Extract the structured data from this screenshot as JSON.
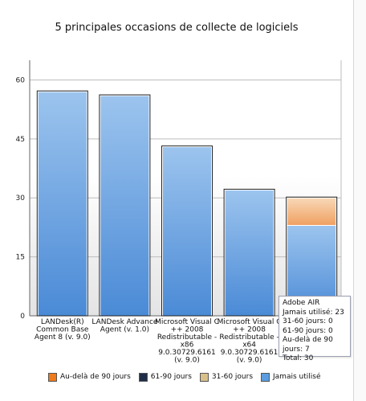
{
  "chart_data": {
    "type": "bar",
    "title": "5 principales occasions de collecte de logiciels",
    "xlabel": "",
    "ylabel": "",
    "ylim": [
      0,
      65
    ],
    "yticks": [
      0,
      15,
      30,
      45,
      60
    ],
    "grid": true,
    "legend_position": "bottom",
    "stacked": true,
    "categories": [
      [
        "LANDesk(R)",
        "Common Base",
        "Agent 8 (v. 9.0)"
      ],
      [
        "LANDesk Advance",
        "Agent (v. 1.0)"
      ],
      [
        "Microsoft Visual C",
        "++ 2008",
        "Redistributable -",
        "x86",
        "9.0.30729.6161",
        "(v. 9.0)"
      ],
      [
        "Microsoft Visual C",
        "++ 2008",
        "Redistributable -",
        "x64",
        "9.0.30729.6161",
        "(v. 9.0)"
      ],
      [
        "Adobe AIR"
      ]
    ],
    "series": [
      {
        "name": "Jamais utilisé",
        "color": "#5b9be0",
        "values": [
          57,
          56,
          43,
          32,
          23
        ]
      },
      {
        "name": "31-60 jours",
        "color": "#d9c08a",
        "values": [
          0,
          0,
          0,
          0,
          0
        ]
      },
      {
        "name": "61-90 jours",
        "color": "#1f2d47",
        "values": [
          0,
          0,
          0,
          0,
          0
        ]
      },
      {
        "name": "Au-delà de 90 jours",
        "color": "#f07a1a",
        "values": [
          0,
          0,
          0,
          0,
          7
        ]
      }
    ],
    "legend_order": [
      "Au-delà de 90 jours",
      "61-90 jours",
      "31-60 jours",
      "Jamais utilisé"
    ]
  },
  "tooltip": {
    "lines": [
      "Adobe AIR",
      "Jamais utilisé: 23",
      "31-60 jours: 0",
      "61-90 jours: 0",
      "Au-delà de 90 jours: 7",
      "Total: 30"
    ]
  }
}
